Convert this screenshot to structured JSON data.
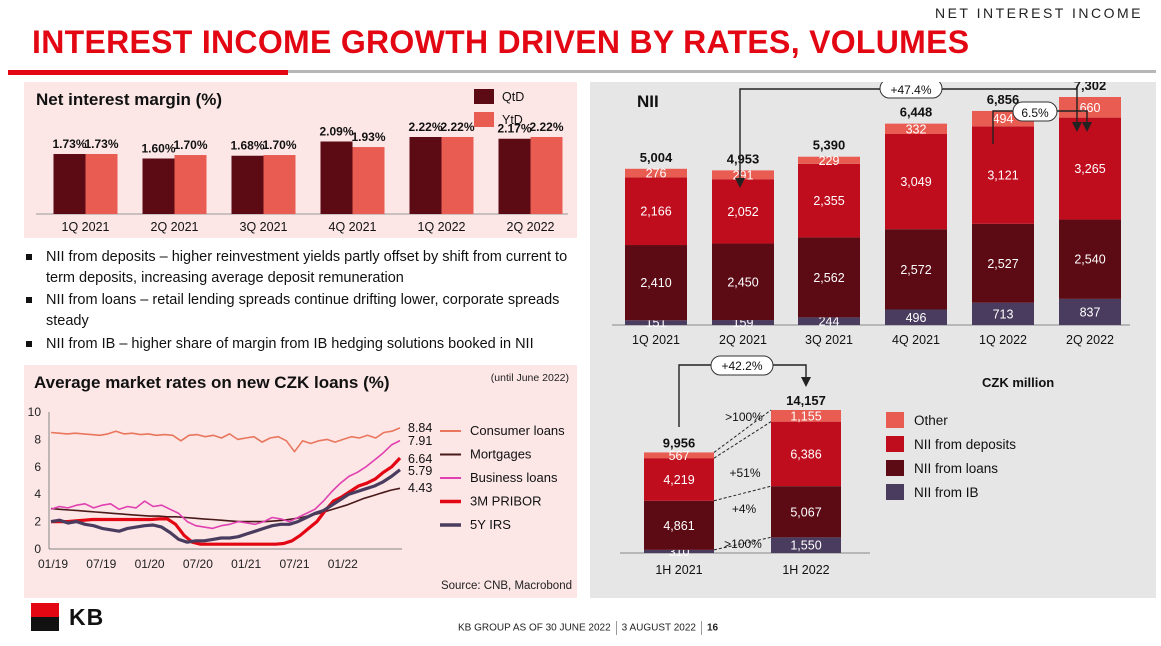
{
  "header": {
    "section": "NET INTEREST INCOME",
    "title": "INTEREST INCOME GROWTH DRIVEN BY RATES, VOLUMES"
  },
  "bullets": [
    "NII from deposits – higher reinvestment yields partly offset by shift from current to term deposits, increasing average deposit remuneration",
    "NII from loans – retail lending spreads continue drifting lower, corporate spreads steady",
    "NII from IB – higher share of margin from IB hedging solutions booked in NII"
  ],
  "footer": {
    "text": "KB GROUP AS OF 30 JUNE 2022",
    "date": "3 AUGUST 2022",
    "page": "16",
    "logo_text": "KB"
  },
  "colors": {
    "brand_red": "#e30613",
    "qtd": "#5c0a14",
    "ytd": "#e85c52",
    "other": "#e85c52",
    "deposits": "#c00d1e",
    "loans": "#5c0a14",
    "ib": "#4a3c5e",
    "consumer": "#e8775e",
    "mortgages": "#4a1a1a",
    "business": "#e040b0",
    "pribor": "#e30613",
    "irs": "#4a3c5e"
  },
  "chart_data": [
    {
      "id": "nim",
      "type": "bar",
      "title": "Net interest margin (%)",
      "categories": [
        "1Q 2021",
        "2Q 2021",
        "3Q 2021",
        "4Q 2021",
        "1Q 2022",
        "2Q 2022"
      ],
      "series": [
        {
          "name": "QtD",
          "values": [
            1.73,
            1.6,
            1.68,
            2.09,
            2.22,
            2.17
          ],
          "labels": [
            "1.73%",
            "1.60%",
            "1.68%",
            "2.09%",
            "2.22%",
            "2.17%"
          ]
        },
        {
          "name": "YtD",
          "values": [
            1.73,
            1.7,
            1.7,
            1.93,
            2.22,
            2.22
          ],
          "labels": [
            "1.73%",
            "1.70%",
            "1.70%",
            "1.93%",
            "2.22%",
            "2.22%"
          ]
        }
      ],
      "ylim": [
        0,
        2.22
      ],
      "legend": "top-right"
    },
    {
      "id": "rates",
      "type": "line",
      "title": "Average market rates on new CZK loans (%)",
      "note": "(until June 2022)",
      "source": "Source: CNB, Macrobond",
      "x_ticks": [
        "01/19",
        "07/19",
        "01/20",
        "07/20",
        "01/21",
        "07/21",
        "01/22"
      ],
      "y_ticks": [
        "0",
        "2",
        "4",
        "6",
        "8",
        "10"
      ],
      "ylim": [
        0,
        10
      ],
      "x_start": "2019-01",
      "series": [
        {
          "name": "Consumer loans",
          "end_label": "8.84",
          "values": [
            8.5,
            8.45,
            8.4,
            8.45,
            8.4,
            8.35,
            8.3,
            8.4,
            8.6,
            8.4,
            8.45,
            8.35,
            8.4,
            8.3,
            8.35,
            8.3,
            7.9,
            8.3,
            8.35,
            8.2,
            8.3,
            8.1,
            8.4,
            8.0,
            8.1,
            8.2,
            7.8,
            8.1,
            8.2,
            7.9,
            7.1,
            7.9,
            7.7,
            7.9,
            8.0,
            7.8,
            8.0,
            8.2,
            8.1,
            8.3,
            8.1,
            8.5,
            8.6,
            8.84
          ]
        },
        {
          "name": "Mortgages",
          "end_label": "4.43",
          "values": [
            2.95,
            2.9,
            2.85,
            2.8,
            2.75,
            2.7,
            2.65,
            2.6,
            2.55,
            2.5,
            2.45,
            2.4,
            2.4,
            2.35,
            2.35,
            2.3,
            2.25,
            2.2,
            2.15,
            2.1,
            2.05,
            2.0,
            2.0,
            2.0,
            2.0,
            2.05,
            2.1,
            2.2,
            2.3,
            2.45,
            2.6,
            2.8,
            3.0,
            3.2,
            3.45,
            3.7,
            3.9,
            4.1,
            4.3,
            4.43
          ]
        },
        {
          "name": "Business loans",
          "end_label": "7.91",
          "values": [
            2.9,
            3.1,
            3.0,
            3.2,
            3.3,
            3.0,
            3.2,
            3.3,
            2.9,
            3.1,
            3.0,
            3.5,
            3.1,
            3.2,
            2.9,
            2.6,
            2.0,
            1.7,
            1.6,
            1.5,
            1.7,
            1.8,
            2.0,
            1.9,
            1.8,
            2.0,
            2.3,
            2.2,
            2.0,
            2.3,
            2.6,
            2.9,
            3.5,
            4.2,
            4.8,
            5.3,
            5.6,
            6.0,
            6.5,
            7.0,
            7.6,
            7.91
          ]
        },
        {
          "name": "3M PRIBOR",
          "end_label": "6.64",
          "values": [
            2.0,
            2.0,
            2.0,
            2.05,
            2.1,
            2.15,
            2.15,
            2.15,
            2.15,
            2.15,
            2.15,
            2.15,
            2.15,
            2.2,
            2.2,
            1.8,
            1.0,
            0.5,
            0.35,
            0.35,
            0.35,
            0.35,
            0.35,
            0.35,
            0.35,
            0.35,
            0.35,
            0.35,
            0.4,
            0.6,
            1.0,
            1.5,
            2.0,
            2.8,
            3.5,
            3.8,
            4.2,
            4.6,
            4.8,
            5.1,
            5.6,
            6.0,
            6.64
          ]
        },
        {
          "name": "5Y IRS",
          "end_label": "5.79",
          "values": [
            2.0,
            2.1,
            1.9,
            2.0,
            1.8,
            1.7,
            1.5,
            1.4,
            1.3,
            1.5,
            1.6,
            1.7,
            1.75,
            1.6,
            1.2,
            0.7,
            0.5,
            0.6,
            0.6,
            0.7,
            0.8,
            0.8,
            0.9,
            1.1,
            1.3,
            1.5,
            1.7,
            1.8,
            1.8,
            2.0,
            2.3,
            2.6,
            2.8,
            3.2,
            3.6,
            4.0,
            4.2,
            4.4,
            4.6,
            4.9,
            5.3,
            5.79
          ]
        }
      ]
    },
    {
      "id": "nii_q",
      "type": "bar",
      "stacked": true,
      "title": "NII",
      "unit": "CZK million",
      "categories": [
        "1Q 2021",
        "2Q 2021",
        "3Q 2021",
        "4Q 2021",
        "1Q 2022",
        "2Q 2022"
      ],
      "totals": [
        "5,004",
        "4,953",
        "5,390",
        "6,448",
        "6,856",
        "7,302"
      ],
      "series": [
        {
          "name": "NII from IB",
          "values": [
            151,
            159,
            244,
            496,
            713,
            837
          ],
          "labels": [
            "151",
            "159",
            "244",
            "496",
            "713",
            "837"
          ]
        },
        {
          "name": "NII from loans",
          "values": [
            2410,
            2450,
            2562,
            2572,
            2527,
            2540
          ],
          "labels": [
            "2,410",
            "2,450",
            "2,562",
            "2,572",
            "2,527",
            "2,540"
          ]
        },
        {
          "name": "NII from deposits",
          "values": [
            2166,
            2052,
            2355,
            3049,
            3121,
            3265
          ],
          "labels": [
            "2,166",
            "2,052",
            "2,355",
            "3,049",
            "3,121",
            "3,265"
          ]
        },
        {
          "name": "Other",
          "values": [
            276,
            291,
            229,
            332,
            494,
            660
          ],
          "labels": [
            "276",
            "291",
            "229",
            "332",
            "494",
            "660"
          ]
        }
      ],
      "annotations": [
        "+47.4%",
        "6.5%"
      ]
    },
    {
      "id": "nii_h",
      "type": "bar",
      "stacked": true,
      "categories": [
        "1H 2021",
        "1H 2022"
      ],
      "totals": [
        "9,956",
        "14,157"
      ],
      "series": [
        {
          "name": "NII from IB",
          "values": [
            310,
            1550
          ],
          "labels": [
            "310",
            "1,550"
          ]
        },
        {
          "name": "NII from loans",
          "values": [
            4861,
            5067
          ],
          "labels": [
            "4,861",
            "5,067"
          ]
        },
        {
          "name": "NII from deposits",
          "values": [
            4219,
            6386
          ],
          "labels": [
            "4,219",
            "6,386"
          ]
        },
        {
          "name": "Other",
          "values": [
            567,
            1155
          ],
          "labels": [
            "567",
            "1,155"
          ]
        }
      ],
      "annotations": [
        "+42.2%",
        ">100%",
        "+51%",
        "+4%",
        ">100%"
      ],
      "legend": [
        "Other",
        "NII from deposits",
        "NII from loans",
        "NII from IB"
      ]
    }
  ]
}
